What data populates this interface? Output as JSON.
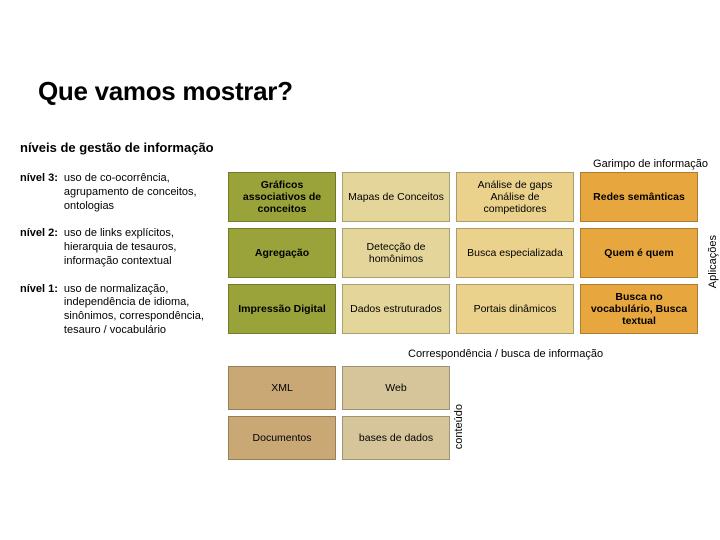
{
  "title": "Que vamos mostrar?",
  "subtitle": "níveis de gestão de informação",
  "labels": {
    "top_right": "Garimpo de informação",
    "bottom": "Correspondência / busca de informação",
    "side": "Aplicações",
    "content": "conteúdo"
  },
  "levels": [
    {
      "label": "nível 3:",
      "desc": "uso de co-ocorrência, agrupamento de conceitos, ontologias"
    },
    {
      "label": "nível 2:",
      "desc": "uso de links explícitos, hierarquia de tesauros, informação contextual"
    },
    {
      "label": "nível 1:",
      "desc": "uso de normalização, independência de idioma, sinônimos, correspondência, tesauro / vocabulário"
    }
  ],
  "main_grid": {
    "colors": {
      "col0": "#9aa23a",
      "col1": "#e4d59a",
      "col2": "#ead18c",
      "col3": "#e8a63e"
    },
    "bold_cols": [
      0,
      3
    ],
    "rows": [
      [
        "Gráficos associativos de conceitos",
        "Mapas de Conceitos",
        "Análise de gaps Análise de competidores",
        "Redes semânticas"
      ],
      [
        "Agregação",
        "Detecção de homônimos",
        "Busca especializada",
        "Quem é quem"
      ],
      [
        "Impressão Digital",
        "Dados estruturados",
        "Portais dinâmicos",
        "Busca no vocabulário, Busca textual"
      ]
    ]
  },
  "bottom_grid": {
    "colors": {
      "col0": "#c9a876",
      "col1": "#d6c59a"
    },
    "rows": [
      [
        "XML",
        "Web"
      ],
      [
        "Documentos",
        "bases de dados"
      ]
    ]
  }
}
